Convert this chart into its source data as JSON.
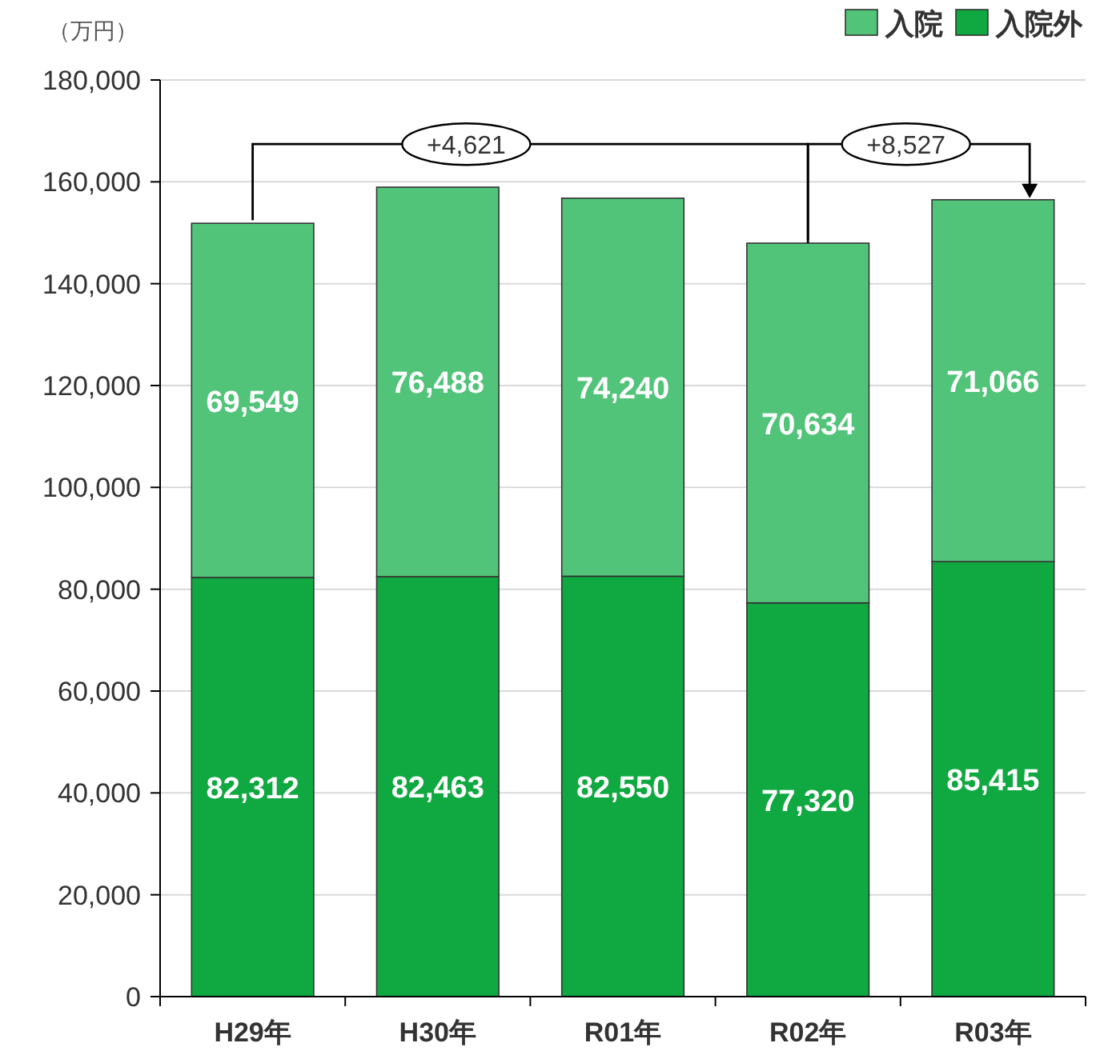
{
  "chart_data": {
    "type": "bar",
    "stacked": true,
    "ylabel": "（万円）",
    "categories": [
      "H29年",
      "H30年",
      "R01年",
      "R02年",
      "R03年"
    ],
    "series": [
      {
        "name": "入院外",
        "color": "#10a840",
        "values": [
          82312,
          82463,
          82550,
          77320,
          85415
        ],
        "value_labels": [
          "82,312",
          "82,463",
          "82,550",
          "77,320",
          "85,415"
        ]
      },
      {
        "name": "入院",
        "color": "#52c47a",
        "values": [
          69549,
          76488,
          74240,
          70634,
          71066
        ],
        "value_labels": [
          "69,549",
          "76,488",
          "74,240",
          "70,634",
          "71,066"
        ]
      }
    ],
    "ylim": [
      0,
      180000
    ],
    "yticks": [
      {
        "value": 0,
        "label": "0"
      },
      {
        "value": 20000,
        "label": "20,000"
      },
      {
        "value": 40000,
        "label": "40,000"
      },
      {
        "value": 60000,
        "label": "60,000"
      },
      {
        "value": 80000,
        "label": "80,000"
      },
      {
        "value": 100000,
        "label": "100,000"
      },
      {
        "value": 120000,
        "label": "120,000"
      },
      {
        "value": 140000,
        "label": "140,000"
      },
      {
        "value": 160000,
        "label": "160,000"
      },
      {
        "value": 180000,
        "label": "180,000"
      }
    ],
    "grid": "y",
    "legend": "top right",
    "data_labels": true,
    "annotations": [
      "+4,621",
      "+8,527"
    ]
  }
}
